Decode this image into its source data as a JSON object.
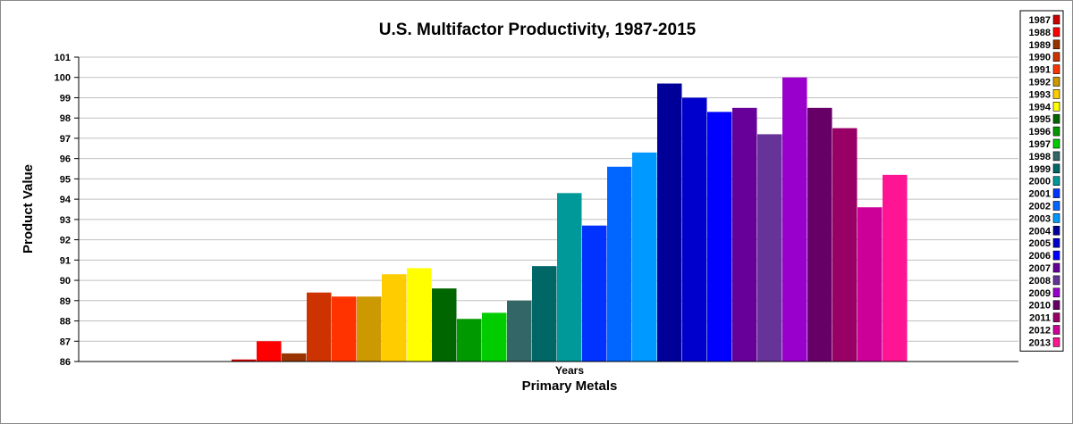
{
  "chart_data": {
    "type": "bar",
    "title": "U.S. Multifactor Productivity, 1987-2015",
    "subtitle": "Primary Metals",
    "xlabel": "Years",
    "ylabel": "Product Value",
    "ylim": [
      86,
      101
    ],
    "yticks": [
      86,
      87,
      88,
      89,
      90,
      91,
      92,
      93,
      94,
      95,
      96,
      97,
      98,
      99,
      100,
      101
    ],
    "grid": true,
    "legend_position": "right",
    "categories": [
      "Years"
    ],
    "series": [
      {
        "name": "1987",
        "color": "#cc0000",
        "values": [
          86.1
        ]
      },
      {
        "name": "1988",
        "color": "#ff0000",
        "values": [
          87.0
        ]
      },
      {
        "name": "1989",
        "color": "#993300",
        "values": [
          86.4
        ]
      },
      {
        "name": "1990",
        "color": "#cc3300",
        "values": [
          89.4
        ]
      },
      {
        "name": "1991",
        "color": "#ff3300",
        "values": [
          89.2
        ]
      },
      {
        "name": "1992",
        "color": "#cc9900",
        "values": [
          89.2
        ]
      },
      {
        "name": "1993",
        "color": "#ffcc00",
        "values": [
          90.3
        ]
      },
      {
        "name": "1994",
        "color": "#ffff00",
        "values": [
          90.6
        ]
      },
      {
        "name": "1995",
        "color": "#006600",
        "values": [
          89.6
        ]
      },
      {
        "name": "1996",
        "color": "#009900",
        "values": [
          88.1
        ]
      },
      {
        "name": "1997",
        "color": "#00cc00",
        "values": [
          88.4
        ]
      },
      {
        "name": "1998",
        "color": "#336666",
        "values": [
          89.0
        ]
      },
      {
        "name": "1999",
        "color": "#006666",
        "values": [
          90.7
        ]
      },
      {
        "name": "2000",
        "color": "#009999",
        "values": [
          94.3
        ]
      },
      {
        "name": "2001",
        "color": "#0033ff",
        "values": [
          92.7
        ]
      },
      {
        "name": "2002",
        "color": "#0066ff",
        "values": [
          95.6
        ]
      },
      {
        "name": "2003",
        "color": "#0099ff",
        "values": [
          96.3
        ]
      },
      {
        "name": "2004",
        "color": "#000099",
        "values": [
          99.7
        ]
      },
      {
        "name": "2005",
        "color": "#0000cc",
        "values": [
          99.0
        ]
      },
      {
        "name": "2006",
        "color": "#0000ff",
        "values": [
          98.3
        ]
      },
      {
        "name": "2007",
        "color": "#660099",
        "values": [
          98.5
        ]
      },
      {
        "name": "2008",
        "color": "#663399",
        "values": [
          97.2
        ]
      },
      {
        "name": "2009",
        "color": "#9900cc",
        "values": [
          100.0
        ]
      },
      {
        "name": "2010",
        "color": "#660066",
        "values": [
          98.5
        ]
      },
      {
        "name": "2011",
        "color": "#990066",
        "values": [
          97.5
        ]
      },
      {
        "name": "2012",
        "color": "#cc0099",
        "values": [
          93.6
        ]
      },
      {
        "name": "2013",
        "color": "#ff1493",
        "values": [
          95.2
        ]
      }
    ]
  }
}
